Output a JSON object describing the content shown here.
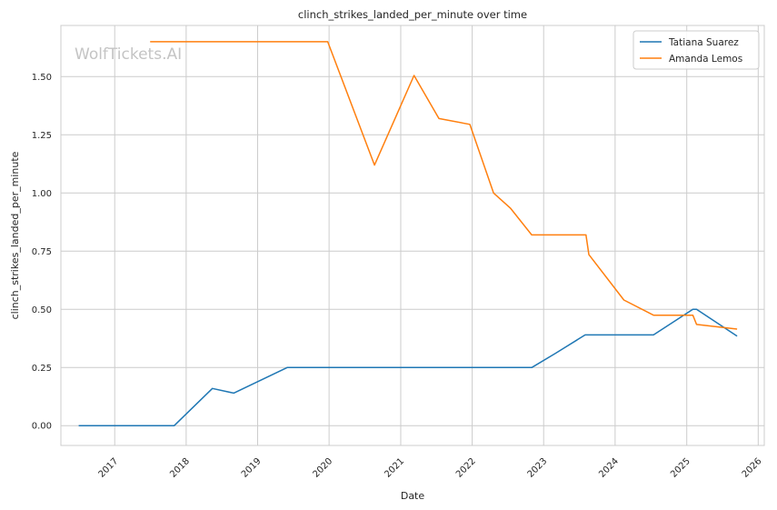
{
  "chart_data": {
    "type": "line",
    "title": "clinch_strikes_landed_per_minute over time",
    "xlabel": "Date",
    "ylabel": "clinch_strikes_landed_per_minute",
    "watermark": "WolfTickets.AI",
    "x_ticks": [
      "2017",
      "2018",
      "2019",
      "2020",
      "2021",
      "2022",
      "2023",
      "2024",
      "2025",
      "2026"
    ],
    "y_ticks": [
      "0.00",
      "0.25",
      "0.50",
      "0.75",
      "1.00",
      "1.25",
      "1.50"
    ],
    "ylim": [
      -0.085,
      1.72
    ],
    "xlim": [
      "2016-04-01",
      "2026-02-01"
    ],
    "grid": true,
    "legend_position": "top-right",
    "series": [
      {
        "name": "Tatiana Suarez",
        "color": "#1f77b4",
        "points": [
          [
            "2016-07-01",
            0.0
          ],
          [
            "2017-11-01",
            0.0
          ],
          [
            "2018-05-15",
            0.16
          ],
          [
            "2018-09-01",
            0.14
          ],
          [
            "2019-06-01",
            0.25
          ],
          [
            "2022-11-01",
            0.25
          ],
          [
            "2023-03-01",
            0.31
          ],
          [
            "2023-08-01",
            0.39
          ],
          [
            "2024-07-15",
            0.39
          ],
          [
            "2025-02-01",
            0.5
          ],
          [
            "2025-02-20",
            0.5
          ],
          [
            "2025-09-15",
            0.385
          ]
        ]
      },
      {
        "name": "Amanda Lemos",
        "color": "#ff7f0e",
        "points": [
          [
            "2017-07-01",
            1.65
          ],
          [
            "2019-12-25",
            1.65
          ],
          [
            "2020-08-20",
            1.12
          ],
          [
            "2021-03-10",
            1.505
          ],
          [
            "2021-07-15",
            1.32
          ],
          [
            "2021-12-20",
            1.295
          ],
          [
            "2022-04-20",
            1.0
          ],
          [
            "2022-07-15",
            0.935
          ],
          [
            "2022-11-01",
            0.82
          ],
          [
            "2023-08-05",
            0.82
          ],
          [
            "2023-08-20",
            0.735
          ],
          [
            "2024-02-15",
            0.54
          ],
          [
            "2024-07-15",
            0.475
          ],
          [
            "2025-02-01",
            0.475
          ],
          [
            "2025-02-20",
            0.435
          ],
          [
            "2025-09-15",
            0.415
          ]
        ]
      }
    ]
  }
}
